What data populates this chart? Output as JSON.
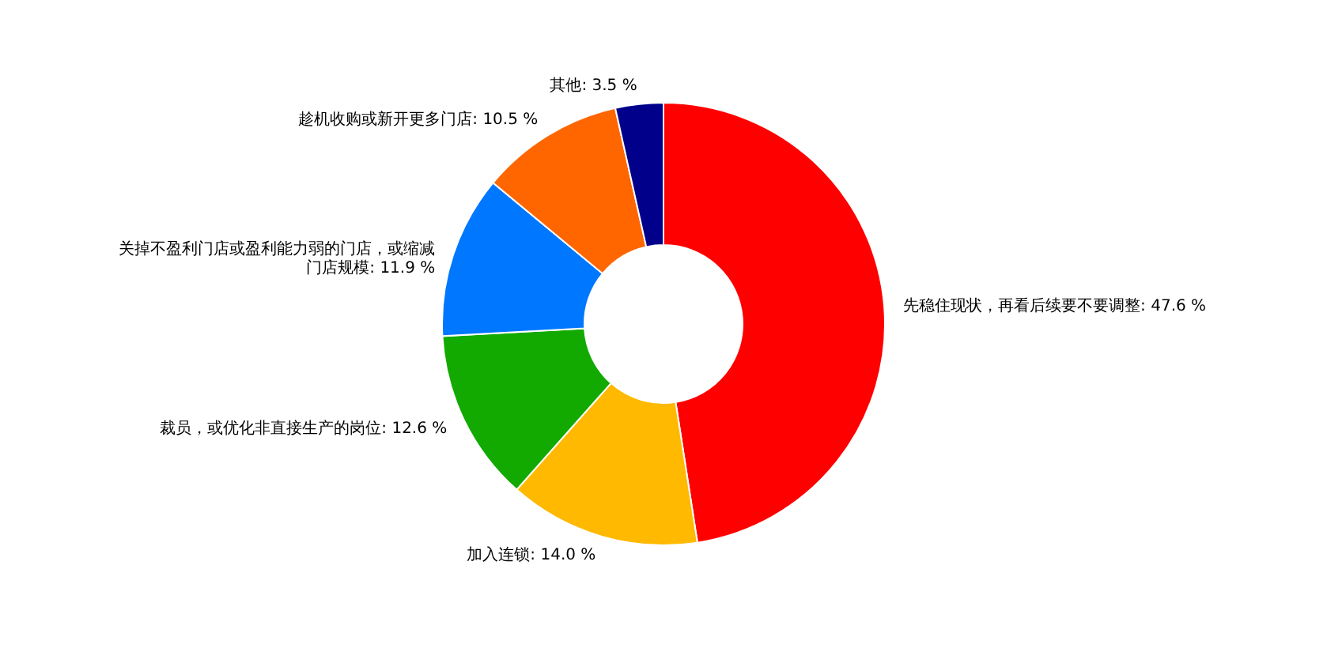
{
  "chart_data": {
    "type": "donut",
    "categories": [
      "先稳住现状，再看后续要不要调整: 47.6 %",
      "加入连锁: 14.0 %",
      "裁员，或优化非直接生产的岗位: 12.6 %",
      "关掉不盈利门店或盈利能力弱的门店，或缩减门店规模: 11.9 %",
      "趁机收购或新开更多门店: 10.5 %",
      "其他: 3.5 %"
    ],
    "values": [
      47.6,
      14.0,
      12.6,
      11.9,
      10.5,
      3.5
    ],
    "colors": [
      "#ff0000",
      "#ffb900",
      "#12aa00",
      "#0077ff",
      "#ff6600",
      "#00008b"
    ],
    "legend": false
  }
}
